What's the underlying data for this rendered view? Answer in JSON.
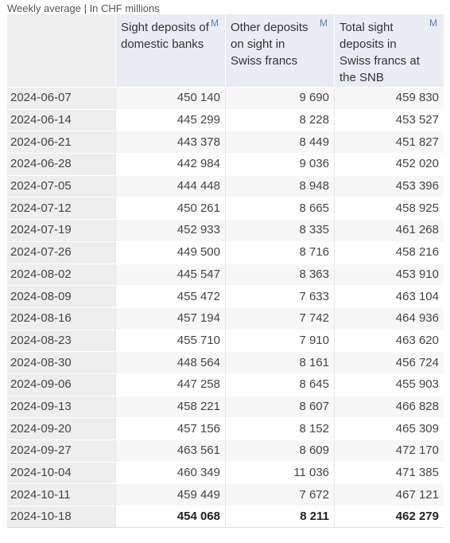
{
  "subtitle": "Weekly average | In CHF millions",
  "columns": [
    {
      "label": "Sight deposits of domestic banks",
      "link": "M"
    },
    {
      "label": "Other deposits on sight in Swiss francs",
      "link": "M"
    },
    {
      "label": "Total sight deposits in Swiss francs at the SNB",
      "link": "M"
    }
  ],
  "rows": [
    {
      "date": "2024-06-07",
      "a": "450 140",
      "b": "9 690",
      "c": "459 830"
    },
    {
      "date": "2024-06-14",
      "a": "445 299",
      "b": "8 228",
      "c": "453 527"
    },
    {
      "date": "2024-06-21",
      "a": "443 378",
      "b": "8 449",
      "c": "451 827"
    },
    {
      "date": "2024-06-28",
      "a": "442 984",
      "b": "9 036",
      "c": "452 020"
    },
    {
      "date": "2024-07-05",
      "a": "444 448",
      "b": "8 948",
      "c": "453 396"
    },
    {
      "date": "2024-07-12",
      "a": "450 261",
      "b": "8 665",
      "c": "458 925"
    },
    {
      "date": "2024-07-19",
      "a": "452 933",
      "b": "8 335",
      "c": "461 268"
    },
    {
      "date": "2024-07-26",
      "a": "449 500",
      "b": "8 716",
      "c": "458 216"
    },
    {
      "date": "2024-08-02",
      "a": "445 547",
      "b": "8 363",
      "c": "453 910"
    },
    {
      "date": "2024-08-09",
      "a": "455 472",
      "b": "7 633",
      "c": "463 104"
    },
    {
      "date": "2024-08-16",
      "a": "457 194",
      "b": "7 742",
      "c": "464 936"
    },
    {
      "date": "2024-08-23",
      "a": "455 710",
      "b": "7 910",
      "c": "463 620"
    },
    {
      "date": "2024-08-30",
      "a": "448 564",
      "b": "8 161",
      "c": "456 724"
    },
    {
      "date": "2024-09-06",
      "a": "447 258",
      "b": "8 645",
      "c": "455 903"
    },
    {
      "date": "2024-09-13",
      "a": "458 221",
      "b": "8 607",
      "c": "466 828"
    },
    {
      "date": "2024-09-20",
      "a": "457 156",
      "b": "8 152",
      "c": "465 309"
    },
    {
      "date": "2024-09-27",
      "a": "463 561",
      "b": "8 609",
      "c": "472 170"
    },
    {
      "date": "2024-10-04",
      "a": "460 349",
      "b": "11 036",
      "c": "471 385"
    },
    {
      "date": "2024-10-11",
      "a": "459 449",
      "b": "7 672",
      "c": "467 121"
    },
    {
      "date": "2024-10-18",
      "a": "454 068",
      "b": "8 211",
      "c": "462 279"
    }
  ]
}
